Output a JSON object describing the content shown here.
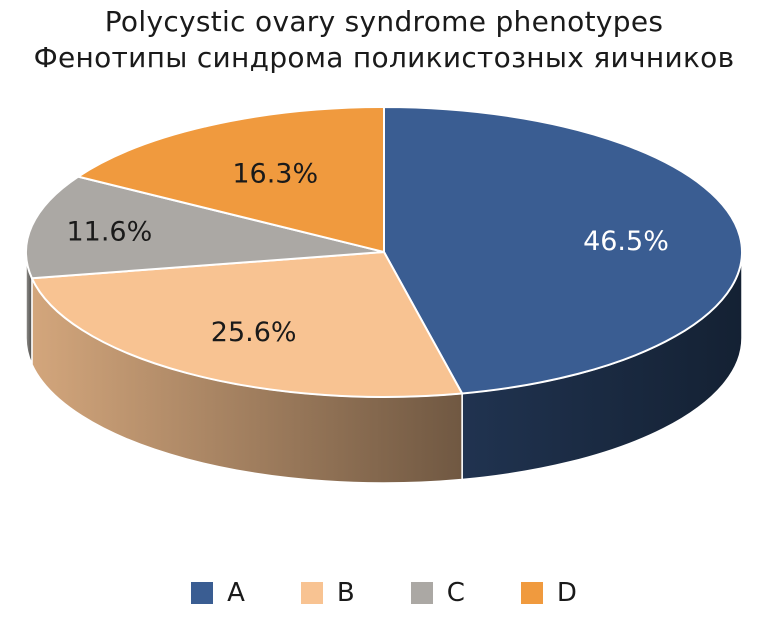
{
  "chart_data": {
    "type": "pie",
    "title": "Polycystic ovary syndrome phenotypes",
    "subtitle": "Фенотипы синдрома поликистозных яичников",
    "categories": [
      "A",
      "B",
      "C",
      "D"
    ],
    "values": [
      46.5,
      25.6,
      11.6,
      16.3
    ],
    "labels": [
      "46.5%",
      "25.6%",
      "11.6%",
      "16.3%"
    ],
    "colors": [
      "#3a5d92",
      "#f8c392",
      "#aba8a4",
      "#f09a3e"
    ],
    "label_colors": [
      "#ffffff",
      "#1a1a1a",
      "#1a1a1a",
      "#1a1a1a"
    ],
    "legend_position": "bottom",
    "style": "3d"
  }
}
